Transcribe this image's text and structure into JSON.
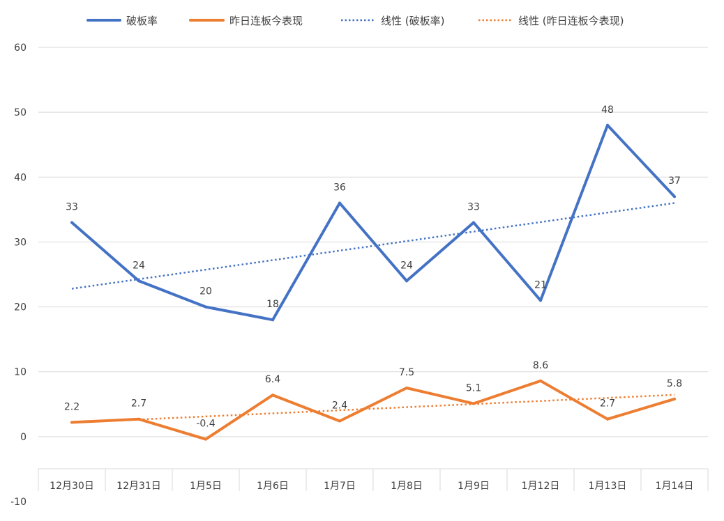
{
  "chart_data": {
    "type": "line",
    "categories": [
      "12月30日",
      "12月31日",
      "1月5日",
      "1月6日",
      "1月7日",
      "1月8日",
      "1月9日",
      "1月12日",
      "1月13日",
      "1月14日"
    ],
    "series": [
      {
        "name": "破板率",
        "values": [
          33,
          24,
          20,
          18,
          36,
          24,
          33,
          21,
          48,
          37
        ],
        "labels": [
          "33",
          "24",
          "20",
          "18",
          "36",
          "24",
          "33",
          "21",
          "48",
          "37"
        ],
        "color": "#4472C4"
      },
      {
        "name": "昨日连板今表现",
        "values": [
          2.2,
          2.7,
          -0.4,
          6.4,
          2.4,
          7.5,
          5.1,
          8.6,
          2.7,
          5.8
        ],
        "labels": [
          "2.2",
          "2.7",
          "-0.4",
          "6.4",
          "2.4",
          "7.5",
          "5.1",
          "8.6",
          "2.7",
          "5.8"
        ],
        "color": "#ED7D31"
      }
    ],
    "trendlines": [
      {
        "name": "线性 (破板率)",
        "of_series": 0,
        "type": "linear",
        "style": "dotted",
        "color": "#4472C4"
      },
      {
        "name": "线性 (昨日连板今表现)",
        "of_series": 1,
        "type": "linear",
        "style": "dotted",
        "color": "#ED7D31"
      }
    ],
    "ylim": [
      -10,
      60
    ],
    "yticks": [
      "-10",
      "0",
      "10",
      "20",
      "30",
      "40",
      "50",
      "60"
    ],
    "grid": true,
    "legend_position": "top",
    "title": "",
    "xlabel": "",
    "ylabel": ""
  }
}
